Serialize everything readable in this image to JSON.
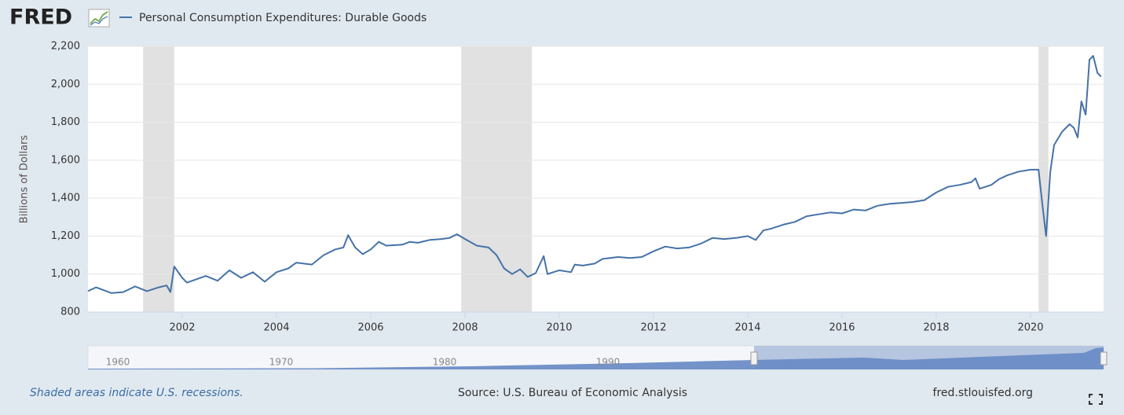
{
  "chart_data": {
    "type": "line",
    "logo": "FRED",
    "y_label": "Billions of Dollars",
    "x": [
      2000.0,
      2000.17,
      2000.5,
      2000.75,
      2001.0,
      2001.25,
      2001.5,
      2001.67,
      2001.75,
      2001.83,
      2002.0,
      2002.1,
      2002.5,
      2002.75,
      2003.0,
      2003.25,
      2003.5,
      2003.75,
      2004.0,
      2004.25,
      2004.42,
      2004.75,
      2005.0,
      2005.25,
      2005.42,
      2005.52,
      2005.67,
      2005.83,
      2006.0,
      2006.17,
      2006.33,
      2006.67,
      2006.83,
      2007.0,
      2007.25,
      2007.5,
      2007.67,
      2007.83,
      2008.0,
      2008.25,
      2008.5,
      2008.67,
      2008.83,
      2009.0,
      2009.17,
      2009.33,
      2009.5,
      2009.67,
      2009.75,
      2010.0,
      2010.25,
      2010.33,
      2010.5,
      2010.75,
      2010.92,
      2011.25,
      2011.5,
      2011.75,
      2012.0,
      2012.25,
      2012.5,
      2012.75,
      2013.0,
      2013.25,
      2013.5,
      2013.75,
      2014.0,
      2014.17,
      2014.33,
      2014.5,
      2014.75,
      2015.0,
      2015.25,
      2015.5,
      2015.75,
      2016.0,
      2016.25,
      2016.5,
      2016.75,
      2017.0,
      2017.25,
      2017.5,
      2017.75,
      2018.0,
      2018.25,
      2018.5,
      2018.75,
      2018.83,
      2018.92,
      2019.17,
      2019.33,
      2019.5,
      2019.75,
      2020.0,
      2020.17,
      2020.25,
      2020.33,
      2020.42,
      2020.5,
      2020.67,
      2020.83,
      2020.92,
      2021.0,
      2021.08,
      2021.17,
      2021.25,
      2021.33,
      2021.42,
      2021.5
    ],
    "series": [
      {
        "name": "Personal Consumption Expenditures: Durable Goods",
        "color": "#4572a7",
        "values": [
          910,
          930,
          900,
          905,
          935,
          910,
          930,
          940,
          905,
          1040,
          980,
          955,
          990,
          965,
          1020,
          980,
          1010,
          960,
          1010,
          1030,
          1060,
          1050,
          1100,
          1130,
          1140,
          1205,
          1140,
          1105,
          1130,
          1170,
          1150,
          1155,
          1170,
          1165,
          1180,
          1185,
          1190,
          1210,
          1185,
          1150,
          1140,
          1100,
          1030,
          1000,
          1025,
          985,
          1005,
          1095,
          1000,
          1020,
          1010,
          1050,
          1045,
          1055,
          1080,
          1090,
          1085,
          1090,
          1120,
          1145,
          1135,
          1140,
          1160,
          1190,
          1185,
          1190,
          1200,
          1180,
          1230,
          1240,
          1260,
          1275,
          1305,
          1315,
          1325,
          1320,
          1340,
          1335,
          1360,
          1370,
          1375,
          1380,
          1390,
          1430,
          1460,
          1470,
          1485,
          1505,
          1450,
          1470,
          1500,
          1520,
          1540,
          1550,
          1550,
          1370,
          1200,
          1540,
          1680,
          1750,
          1790,
          1770,
          1720,
          1910,
          1840,
          2130,
          2150,
          2060,
          2040
        ]
      }
    ],
    "xlim": [
      2000,
      2021.55
    ],
    "xticks": [
      2002,
      2004,
      2006,
      2008,
      2010,
      2012,
      2014,
      2016,
      2018,
      2020
    ],
    "ylim": [
      800,
      2200
    ],
    "yticks": [
      800,
      {
        "value": 1000,
        "label": "1,000"
      },
      {
        "value": 1200,
        "label": "1,200"
      },
      {
        "value": 1400,
        "label": "1,400"
      },
      {
        "value": 1600,
        "label": "1,600"
      },
      {
        "value": 1800,
        "label": "1,800"
      },
      {
        "value": 2000,
        "label": "2,000"
      },
      {
        "value": 2200,
        "label": "2,200"
      }
    ],
    "grid": true,
    "recessions": [
      [
        2001.17,
        2001.83
      ],
      [
        2007.92,
        2009.42
      ],
      [
        2020.17,
        2020.38
      ]
    ],
    "navigator_labels": [
      "1960",
      "1970",
      "1980",
      "1990"
    ],
    "note": "Shaded areas indicate U.S. recessions.",
    "source": "Source: U.S. Bureau of Economic Analysis",
    "site": "fred.stlouisfed.org"
  }
}
